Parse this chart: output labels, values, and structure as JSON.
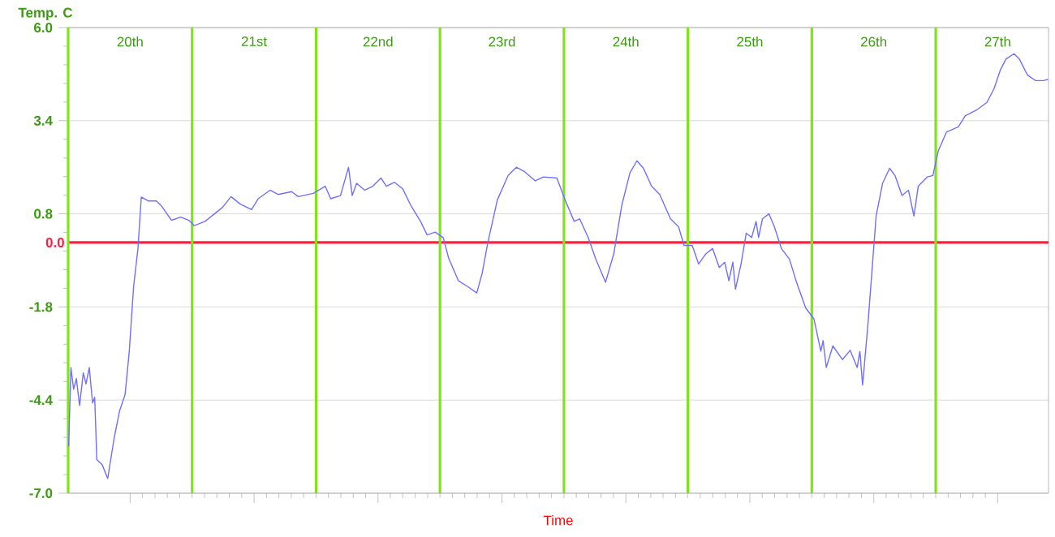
{
  "chart_data": {
    "type": "line",
    "xlabel": "Time",
    "ylabel": "Temp. C",
    "x": [
      19.504,
      19.522,
      19.544,
      19.566,
      19.592,
      19.622,
      19.644,
      19.67,
      19.697,
      19.714,
      19.731,
      19.775,
      19.819,
      19.871,
      19.915,
      19.959,
      19.993,
      20.028,
      20.063,
      20.09,
      20.146,
      20.212,
      20.255,
      20.334,
      20.408,
      20.474,
      20.517,
      20.605,
      20.67,
      20.745,
      20.814,
      20.889,
      20.98,
      21.033,
      21.129,
      21.194,
      21.303,
      21.356,
      21.478,
      21.574,
      21.618,
      21.697,
      21.762,
      21.792,
      21.827,
      21.893,
      21.958,
      22.024,
      22.067,
      22.133,
      22.199,
      22.264,
      22.343,
      22.396,
      22.461,
      22.527,
      22.57,
      22.649,
      22.723,
      22.797,
      22.841,
      22.885,
      22.963,
      23.05,
      23.116,
      23.181,
      23.269,
      23.334,
      23.443,
      23.509,
      23.583,
      23.627,
      23.697,
      23.758,
      23.836,
      23.902,
      23.967,
      24.033,
      24.089,
      24.142,
      24.207,
      24.273,
      24.36,
      24.425,
      24.469,
      24.535,
      24.587,
      24.644,
      24.7,
      24.753,
      24.797,
      24.831,
      24.863,
      24.884,
      24.928,
      24.971,
      25.015,
      25.05,
      25.071,
      25.102,
      25.154,
      25.198,
      25.255,
      25.32,
      25.373,
      25.451,
      25.517,
      25.573,
      25.591,
      25.617,
      25.67,
      25.748,
      25.809,
      25.866,
      25.888,
      25.91,
      25.953,
      26.019,
      26.071,
      26.128,
      26.171,
      26.228,
      26.28,
      26.324,
      26.359,
      26.433,
      26.477,
      26.52,
      26.586,
      26.682,
      26.739,
      26.826,
      26.913,
      26.97,
      27.022,
      27.066,
      27.131,
      27.175,
      27.241,
      27.306,
      27.372,
      27.407
    ],
    "series": [
      {
        "color": "#6f6fff",
        "values": [
          -5.69,
          -3.49,
          -4.1,
          -3.8,
          -4.55,
          -3.64,
          -3.95,
          -3.49,
          -4.48,
          -4.32,
          -6.06,
          -6.21,
          -6.59,
          -5.46,
          -4.7,
          -4.25,
          -3.04,
          -1.23,
          -0.17,
          1.27,
          1.16,
          1.16,
          1.01,
          0.62,
          0.71,
          0.62,
          0.47,
          0.59,
          0.77,
          0.98,
          1.28,
          1.07,
          0.92,
          1.22,
          1.46,
          1.34,
          1.42,
          1.28,
          1.37,
          1.57,
          1.22,
          1.31,
          2.1,
          1.31,
          1.65,
          1.46,
          1.57,
          1.8,
          1.57,
          1.68,
          1.5,
          1.04,
          0.59,
          0.21,
          0.29,
          0.13,
          -0.44,
          -1.07,
          -1.23,
          -1.41,
          -0.85,
          -0.02,
          1.19,
          1.87,
          2.1,
          1.98,
          1.72,
          1.83,
          1.8,
          1.19,
          0.59,
          0.66,
          0.13,
          -0.47,
          -1.11,
          -0.32,
          1.04,
          1.95,
          2.28,
          2.07,
          1.57,
          1.34,
          0.66,
          0.44,
          -0.08,
          -0.08,
          -0.6,
          -0.32,
          -0.17,
          -0.7,
          -0.55,
          -1.07,
          -0.55,
          -1.3,
          -0.62,
          0.26,
          0.14,
          0.59,
          0.14,
          0.66,
          0.8,
          0.44,
          -0.17,
          -0.47,
          -1.07,
          -1.83,
          -2.13,
          -3.04,
          -2.74,
          -3.49,
          -2.89,
          -3.27,
          -3.01,
          -3.49,
          -3.04,
          -3.98,
          -2.28,
          0.74,
          1.65,
          2.07,
          1.87,
          1.31,
          1.46,
          0.74,
          1.57,
          1.83,
          1.87,
          2.55,
          3.08,
          3.23,
          3.54,
          3.69,
          3.91,
          4.29,
          4.82,
          5.12,
          5.27,
          5.12,
          4.67,
          4.52,
          4.52,
          4.56
        ]
      }
    ],
    "xlim": [
      19.5,
      27.41
    ],
    "ylim": [
      -7.0,
      6.0
    ],
    "yticks": [
      {
        "value": -7.0,
        "label": "-7.0"
      },
      {
        "value": -4.4,
        "label": "-4.4"
      },
      {
        "value": -1.8,
        "label": "-1.8"
      },
      {
        "value": 0.8,
        "label": "0.8"
      },
      {
        "value": 3.4,
        "label": "3.4"
      },
      {
        "value": 6.0,
        "label": "6.0"
      }
    ],
    "xticks": [
      {
        "value": 20,
        "label": "20th"
      },
      {
        "value": 21,
        "label": "21st"
      },
      {
        "value": 22,
        "label": "22nd"
      },
      {
        "value": 23,
        "label": "23rd"
      },
      {
        "value": 24,
        "label": "24th"
      },
      {
        "value": 25,
        "label": "25th"
      },
      {
        "value": 26,
        "label": "26th"
      },
      {
        "value": 27,
        "label": "27th"
      }
    ],
    "ref_lines": [
      {
        "axis": "y",
        "value": 0.0,
        "label": "0.0",
        "color": "#ff1f3d"
      },
      {
        "axis": "x",
        "value": 19.5,
        "color": "#7fe51a"
      },
      {
        "axis": "x",
        "value": 20.5,
        "color": "#7fe51a"
      },
      {
        "axis": "x",
        "value": 21.5,
        "color": "#7fe51a"
      },
      {
        "axis": "x",
        "value": 22.5,
        "color": "#7fe51a"
      },
      {
        "axis": "x",
        "value": 23.5,
        "color": "#7fe51a"
      },
      {
        "axis": "x",
        "value": 24.5,
        "color": "#7fe51a"
      },
      {
        "axis": "x",
        "value": 25.5,
        "color": "#7fe51a"
      },
      {
        "axis": "x",
        "value": 26.5,
        "color": "#7fe51a"
      }
    ],
    "grid": "y"
  }
}
